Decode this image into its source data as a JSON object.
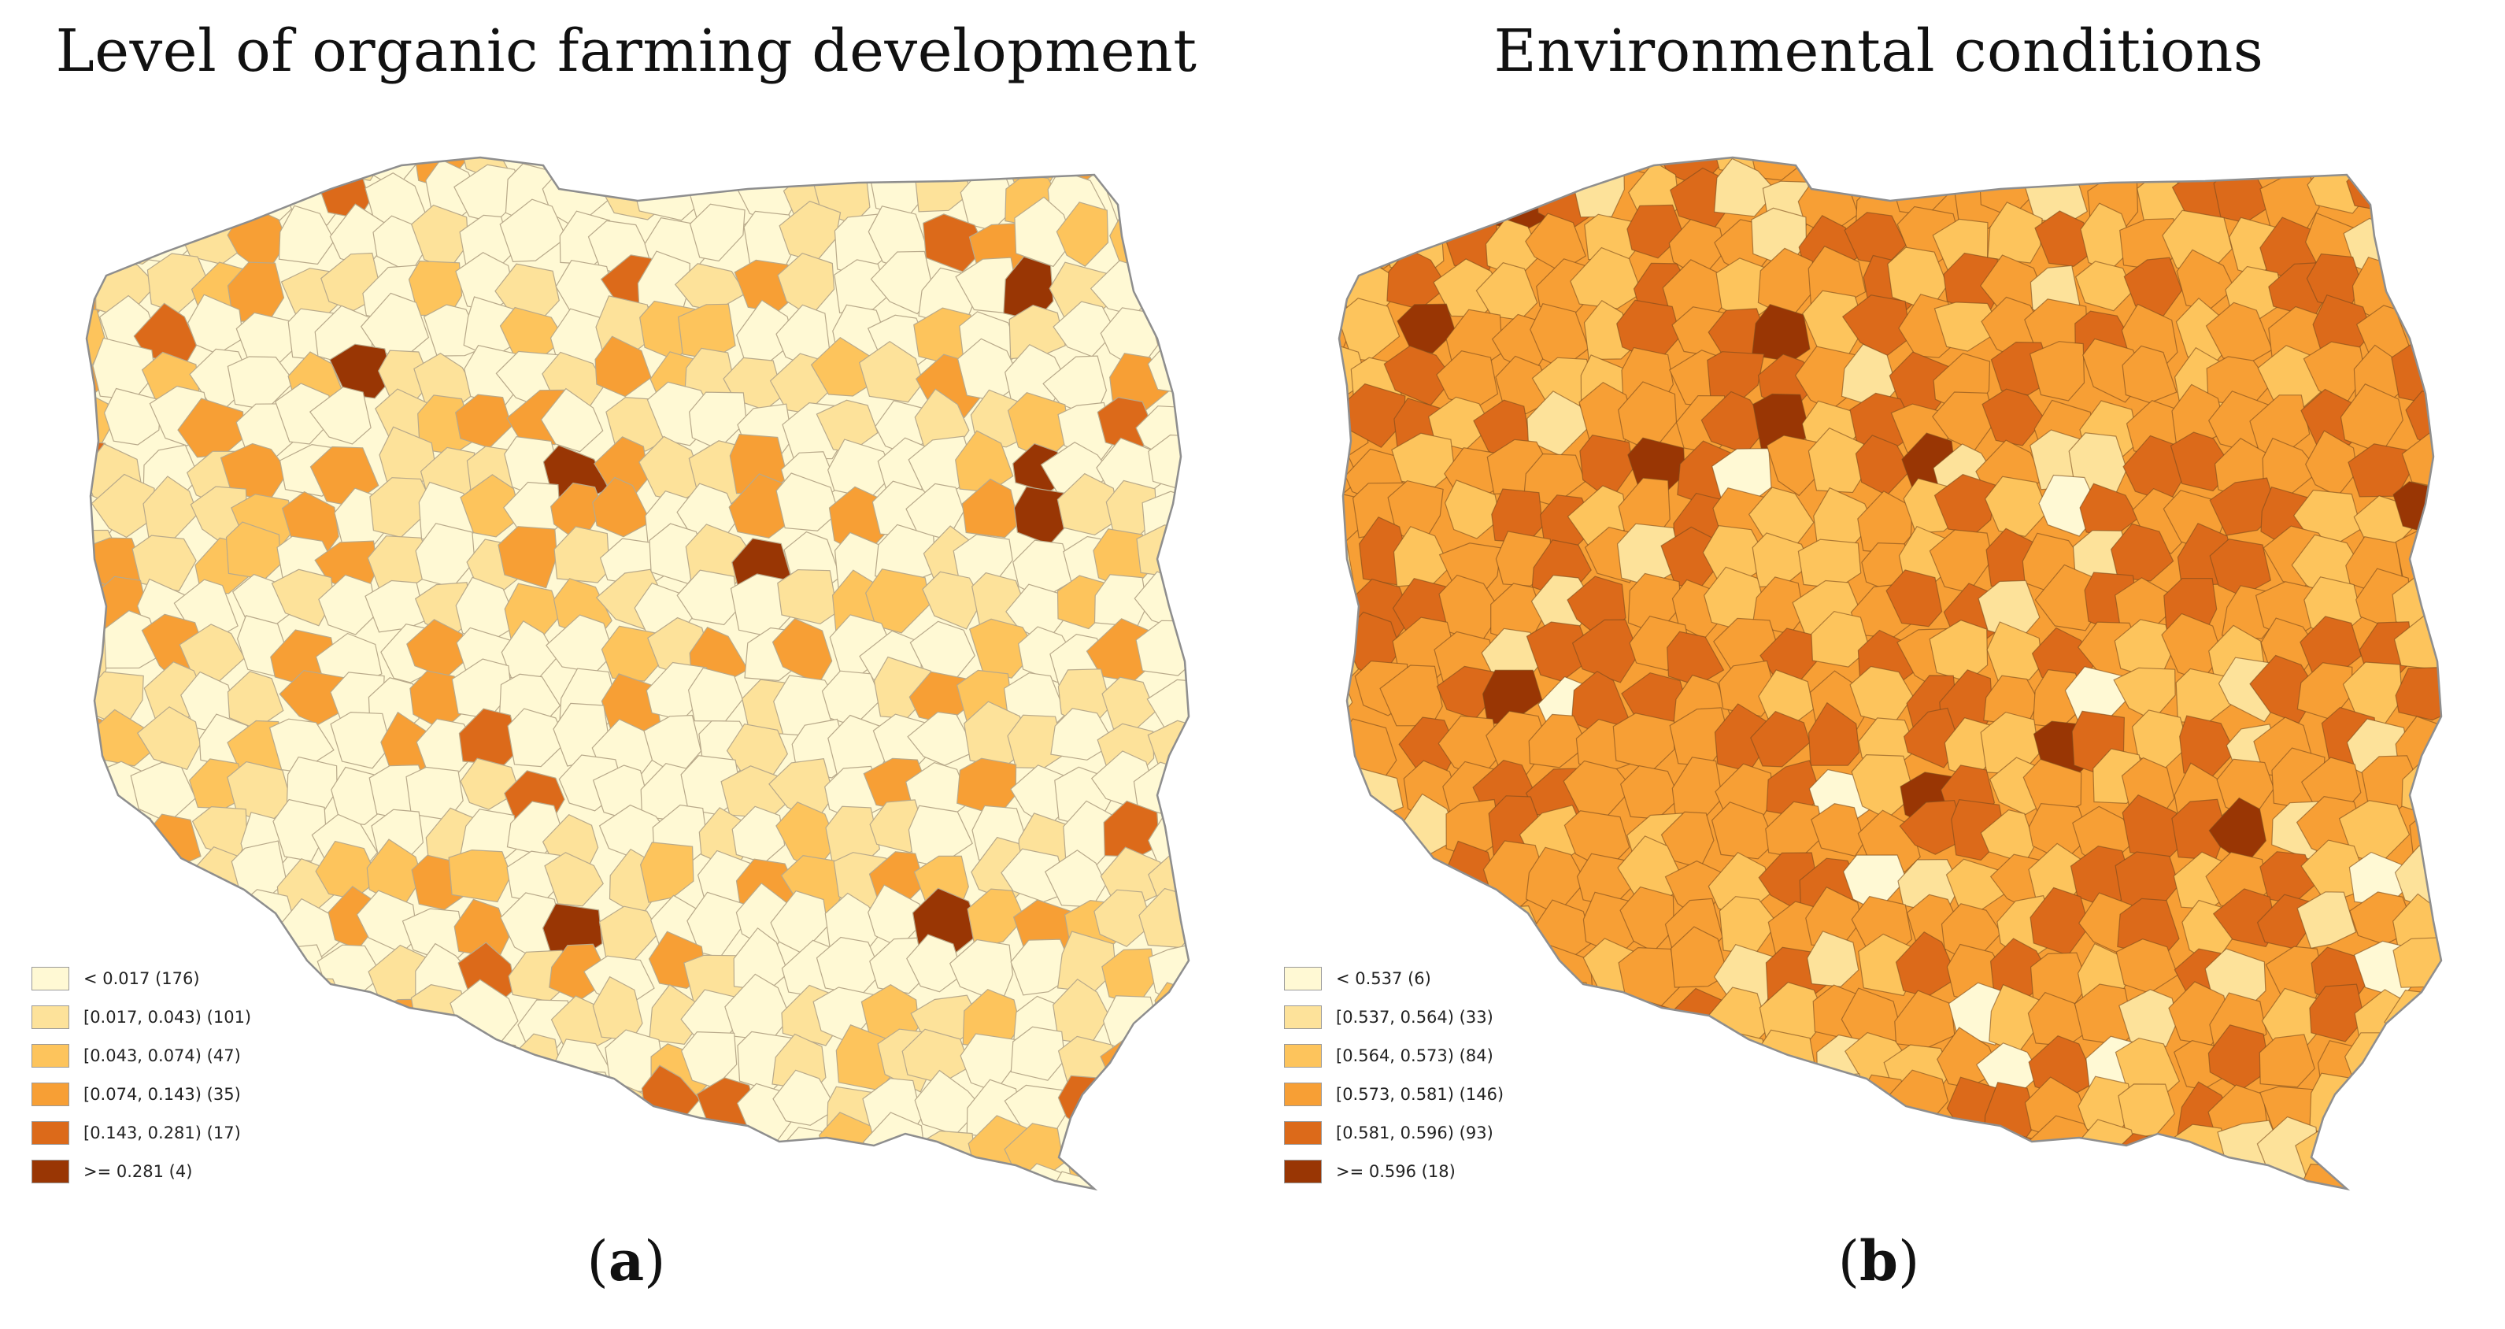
{
  "panels": [
    {
      "title": "Level of organic farming development",
      "caption_open": "(",
      "caption_letter": "a",
      "caption_close": ")",
      "legend": [
        {
          "label": "< 0.017 (176)",
          "color": "#fff9d4"
        },
        {
          "label": "[0.017, 0.043) (101)",
          "color": "#fde29a"
        },
        {
          "label": "[0.043, 0.074) (47)",
          "color": "#fdc45c"
        },
        {
          "label": "[0.074, 0.143) (35)",
          "color": "#f79f35"
        },
        {
          "label": "[0.143, 0.281) (17)",
          "color": "#dc6a1a"
        },
        {
          "label": ">= 0.281 (4)",
          "color": "#993604"
        }
      ]
    },
    {
      "title": "Environmental conditions",
      "caption_open": "(",
      "caption_letter": "b",
      "caption_close": ")",
      "legend": [
        {
          "label": "< 0.537 (6)",
          "color": "#fff9d4"
        },
        {
          "label": "[0.537, 0.564) (33)",
          "color": "#fde29a"
        },
        {
          "label": "[0.564, 0.573) (84)",
          "color": "#fdc45c"
        },
        {
          "label": "[0.573, 0.581) (146)",
          "color": "#f79f35"
        },
        {
          "label": "[0.581, 0.596) (93)",
          "color": "#dc6a1a"
        },
        {
          "label": ">= 0.596 (18)",
          "color": "#993604"
        }
      ]
    }
  ]
}
